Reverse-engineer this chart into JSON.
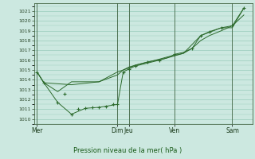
{
  "bg_color": "#cce8e0",
  "grid_color": "#99ccbb",
  "line_color": "#2d6b2d",
  "ylim": [
    1009.5,
    1021.8
  ],
  "yticks": [
    1010,
    1011,
    1012,
    1013,
    1014,
    1015,
    1016,
    1017,
    1018,
    1019,
    1020,
    1021
  ],
  "xlabel": "Pression niveau de la mer( hPa )",
  "day_labels": [
    "Mer",
    "Dim",
    "Jeu",
    "Ven",
    "Sam"
  ],
  "day_x": [
    0.0,
    4.67,
    5.33,
    8.0,
    11.33
  ],
  "xlim": [
    -0.15,
    12.5
  ],
  "line1_x": [
    0.0,
    0.4,
    1.2,
    2.0,
    2.8,
    3.6,
    4.67,
    5.0,
    5.33,
    5.7,
    6.4,
    7.1,
    7.5,
    8.0,
    8.5,
    9.0,
    9.5,
    10.0,
    10.7,
    11.33,
    12.0
  ],
  "line1_y": [
    1014.8,
    1013.7,
    1011.7,
    1010.5,
    1011.1,
    1011.2,
    1011.5,
    1014.8,
    1015.1,
    1015.4,
    1015.7,
    1016.0,
    1016.2,
    1016.6,
    1016.8,
    1017.2,
    1018.5,
    1018.9,
    1019.3,
    1019.5,
    1021.3
  ],
  "line2_x": [
    0.0,
    0.4,
    1.2,
    2.0,
    2.8,
    3.6,
    4.67,
    5.0,
    5.33,
    5.7,
    6.4,
    7.1,
    7.5,
    8.0,
    8.5,
    9.0,
    9.5,
    10.0,
    10.7,
    11.33,
    12.0
  ],
  "line2_y": [
    1014.8,
    1013.7,
    1012.8,
    1013.8,
    1013.8,
    1013.8,
    1014.5,
    1015.0,
    1015.2,
    1015.5,
    1015.8,
    1016.1,
    1016.3,
    1016.5,
    1016.7,
    1017.2,
    1018.0,
    1018.5,
    1019.0,
    1019.5,
    1020.6
  ],
  "line3_x": [
    0.0,
    0.4,
    2.0,
    3.6,
    4.67,
    5.0,
    5.33,
    6.4,
    7.5,
    8.5,
    9.5,
    10.7,
    11.33,
    12.0
  ],
  "line3_y": [
    1014.8,
    1013.7,
    1013.5,
    1013.8,
    1014.8,
    1015.0,
    1015.3,
    1015.8,
    1016.2,
    1016.7,
    1018.5,
    1019.3,
    1019.3,
    1021.3
  ],
  "mk_x": [
    0.0,
    0.4,
    1.2,
    1.6,
    2.0,
    2.4,
    2.8,
    3.2,
    3.6,
    4.0,
    4.4,
    4.67,
    5.0,
    5.33,
    5.7,
    6.4,
    7.1,
    8.0,
    9.0,
    9.5,
    10.0,
    10.7,
    11.33,
    12.0
  ],
  "mk_y": [
    1014.8,
    1013.7,
    1011.7,
    1012.6,
    1010.5,
    1011.0,
    1011.1,
    1011.2,
    1011.2,
    1011.3,
    1011.5,
    1011.5,
    1014.8,
    1015.1,
    1015.4,
    1015.8,
    1016.0,
    1016.6,
    1017.2,
    1018.5,
    1018.9,
    1019.3,
    1019.5,
    1021.3
  ]
}
